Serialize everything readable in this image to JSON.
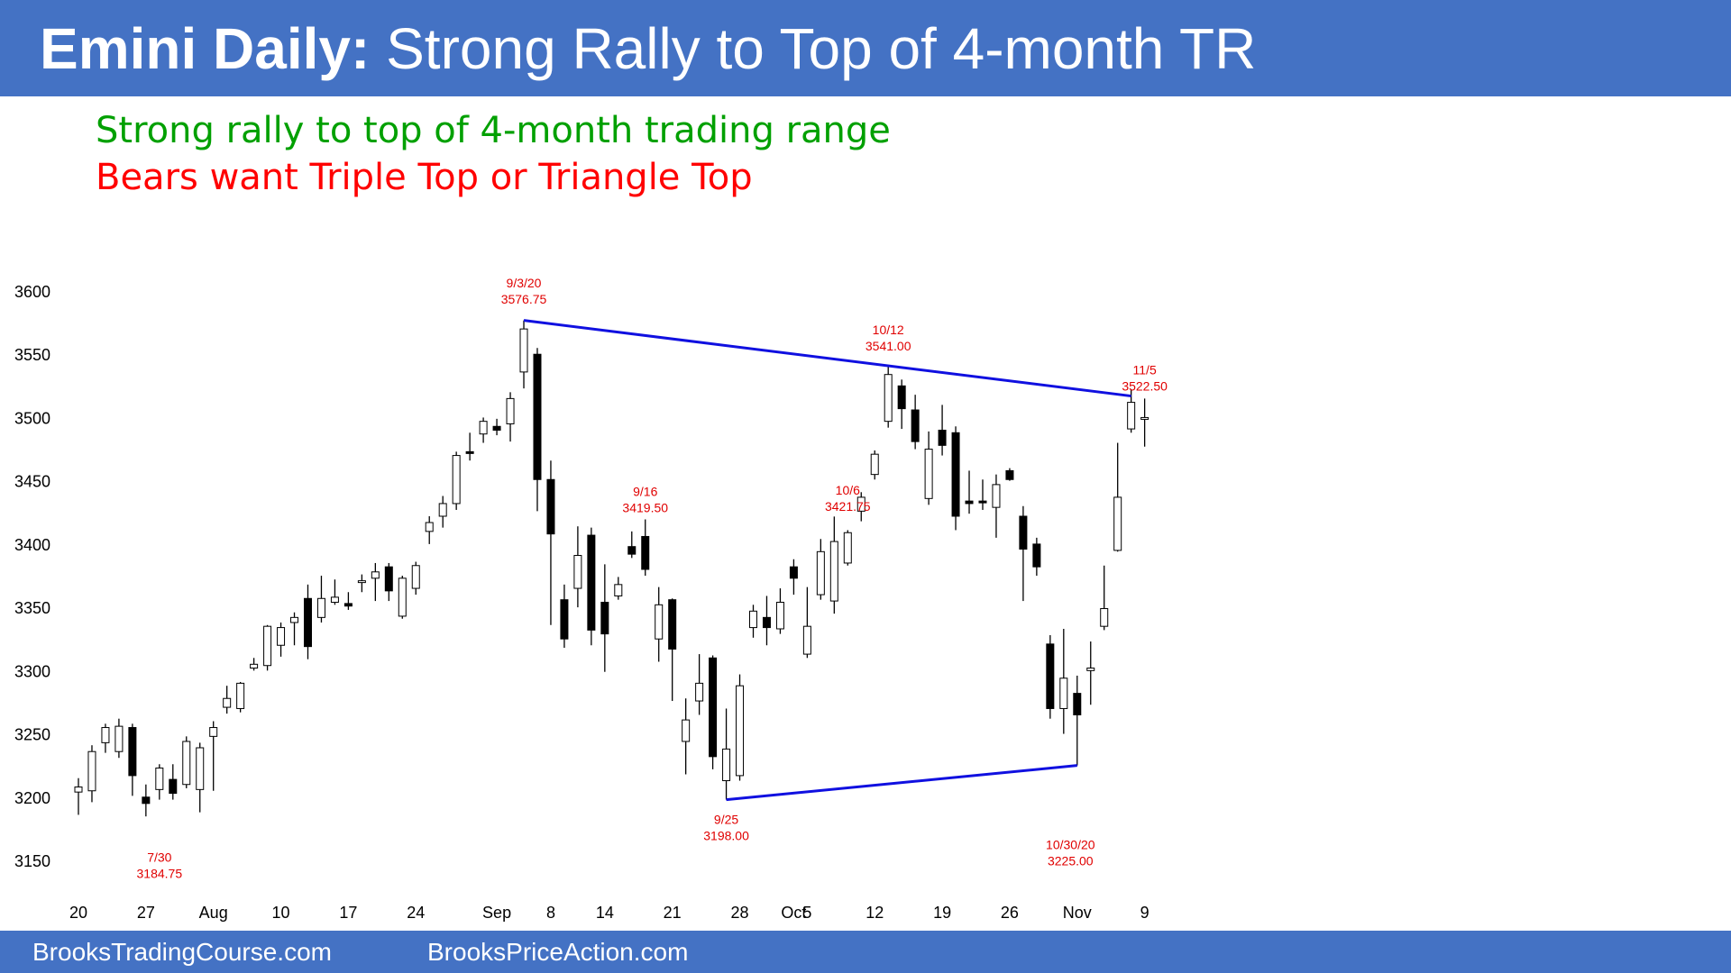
{
  "header": {
    "title_bold": "Emini Daily:",
    "title_rest": " Strong Rally to Top of 4-month TR"
  },
  "subtitles": {
    "line1": "Strong rally to top of 4-month trading range",
    "line2": "Bears want Triple Top or Triangle Top"
  },
  "footer": {
    "left": "BrooksTradingCourse.com",
    "right": "BrooksPriceAction.com"
  },
  "colors": {
    "header_bg": "#4472C4",
    "subtitle1": "#00A000",
    "subtitle2": "#FF0000",
    "annotation": "#E00000",
    "trendline": "#1010E0",
    "bear_body": "#000000",
    "bull_body": "#FFFFFF"
  },
  "chart_data": {
    "type": "candlestick",
    "title": "",
    "xlabel": "",
    "ylabel": "",
    "grid": false,
    "ylim": [
      3130,
      3615
    ],
    "yticks": [
      3150,
      3200,
      3250,
      3300,
      3350,
      3400,
      3450,
      3500,
      3550,
      3600
    ],
    "xticks": [
      {
        "label": "20",
        "bar": 0
      },
      {
        "label": "27",
        "bar": 5
      },
      {
        "label": "Aug",
        "bar": 10
      },
      {
        "label": "10",
        "bar": 15
      },
      {
        "label": "17",
        "bar": 20
      },
      {
        "label": "24",
        "bar": 25
      },
      {
        "label": "Sep",
        "bar": 31
      },
      {
        "label": "8",
        "bar": 35
      },
      {
        "label": "14",
        "bar": 39
      },
      {
        "label": "21",
        "bar": 44
      },
      {
        "label": "28",
        "bar": 49
      },
      {
        "label": "Oct",
        "bar": 53
      },
      {
        "label": "5",
        "bar": 54
      },
      {
        "label": "12",
        "bar": 59
      },
      {
        "label": "19",
        "bar": 64
      },
      {
        "label": "26",
        "bar": 69
      },
      {
        "label": "Nov",
        "bar": 74
      },
      {
        "label": "9",
        "bar": 79
      }
    ],
    "candles": [
      {
        "o": 3204,
        "h": 3215,
        "l": 3186,
        "c": 3208
      },
      {
        "o": 3205,
        "h": 3241,
        "l": 3196,
        "c": 3236
      },
      {
        "o": 3243,
        "h": 3258,
        "l": 3235,
        "c": 3255
      },
      {
        "o": 3236,
        "h": 3262,
        "l": 3231,
        "c": 3256
      },
      {
        "o": 3255,
        "h": 3258,
        "l": 3201,
        "c": 3217
      },
      {
        "o": 3200,
        "h": 3210,
        "l": 3184.75,
        "c": 3195
      },
      {
        "o": 3206,
        "h": 3226,
        "l": 3198,
        "c": 3223
      },
      {
        "o": 3214,
        "h": 3226,
        "l": 3198,
        "c": 3203
      },
      {
        "o": 3210,
        "h": 3248,
        "l": 3207,
        "c": 3244
      },
      {
        "o": 3206,
        "h": 3243,
        "l": 3188,
        "c": 3239
      },
      {
        "o": 3248,
        "h": 3260,
        "l": 3205,
        "c": 3255
      },
      {
        "o": 3271,
        "h": 3288,
        "l": 3266,
        "c": 3278
      },
      {
        "o": 3270,
        "h": 3291,
        "l": 3267,
        "c": 3290
      },
      {
        "o": 3302,
        "h": 3310,
        "l": 3300,
        "c": 3305
      },
      {
        "o": 3304,
        "h": 3336,
        "l": 3300,
        "c": 3335
      },
      {
        "o": 3320,
        "h": 3338,
        "l": 3311,
        "c": 3334
      },
      {
        "o": 3338,
        "h": 3346,
        "l": 3320,
        "c": 3342
      },
      {
        "o": 3357,
        "h": 3368,
        "l": 3309,
        "c": 3319
      },
      {
        "o": 3342,
        "h": 3375,
        "l": 3338,
        "c": 3357
      },
      {
        "o": 3354,
        "h": 3372,
        "l": 3352,
        "c": 3358
      },
      {
        "o": 3353,
        "h": 3362,
        "l": 3348,
        "c": 3351
      },
      {
        "o": 3370,
        "h": 3376,
        "l": 3362,
        "c": 3371
      },
      {
        "o": 3373,
        "h": 3385,
        "l": 3355,
        "c": 3378
      },
      {
        "o": 3382,
        "h": 3385,
        "l": 3355,
        "c": 3363
      },
      {
        "o": 3343,
        "h": 3375,
        "l": 3341,
        "c": 3373
      },
      {
        "o": 3365,
        "h": 3386,
        "l": 3360,
        "c": 3383
      },
      {
        "o": 3410,
        "h": 3422,
        "l": 3400,
        "c": 3417
      },
      {
        "o": 3422,
        "h": 3438,
        "l": 3413,
        "c": 3432
      },
      {
        "o": 3432,
        "h": 3473,
        "l": 3427,
        "c": 3470
      },
      {
        "o": 3473,
        "h": 3488,
        "l": 3466,
        "c": 3472
      },
      {
        "o": 3487,
        "h": 3500,
        "l": 3480,
        "c": 3497
      },
      {
        "o": 3493,
        "h": 3499,
        "l": 3486,
        "c": 3490
      },
      {
        "o": 3495,
        "h": 3520,
        "l": 3481,
        "c": 3515
      },
      {
        "o": 3536,
        "h": 3576.75,
        "l": 3523,
        "c": 3570
      },
      {
        "o": 3550,
        "h": 3555,
        "l": 3426,
        "c": 3451
      },
      {
        "o": 3451,
        "h": 3466,
        "l": 3336,
        "c": 3408
      },
      {
        "o": 3356,
        "h": 3368,
        "l": 3318,
        "c": 3325
      },
      {
        "o": 3365,
        "h": 3414,
        "l": 3350,
        "c": 3391
      },
      {
        "o": 3407,
        "h": 3413,
        "l": 3320,
        "c": 3332
      },
      {
        "o": 3354,
        "h": 3384,
        "l": 3299,
        "c": 3329
      },
      {
        "o": 3359,
        "h": 3374,
        "l": 3356,
        "c": 3368
      },
      {
        "o": 3398,
        "h": 3410,
        "l": 3389,
        "c": 3392
      },
      {
        "o": 3406,
        "h": 3419.5,
        "l": 3375,
        "c": 3380
      },
      {
        "o": 3325,
        "h": 3366,
        "l": 3307,
        "c": 3352
      },
      {
        "o": 3356,
        "h": 3357,
        "l": 3276,
        "c": 3317
      },
      {
        "o": 3244,
        "h": 3278,
        "l": 3218,
        "c": 3261
      },
      {
        "o": 3276,
        "h": 3313,
        "l": 3265,
        "c": 3290
      },
      {
        "o": 3310,
        "h": 3312,
        "l": 3222,
        "c": 3232
      },
      {
        "o": 3213,
        "h": 3270,
        "l": 3198,
        "c": 3238
      },
      {
        "o": 3217,
        "h": 3297,
        "l": 3213,
        "c": 3288
      },
      {
        "o": 3334,
        "h": 3352,
        "l": 3326,
        "c": 3347
      },
      {
        "o": 3342,
        "h": 3359,
        "l": 3320,
        "c": 3334
      },
      {
        "o": 3333,
        "h": 3365,
        "l": 3329,
        "c": 3354
      },
      {
        "o": 3382,
        "h": 3388,
        "l": 3360,
        "c": 3373
      },
      {
        "o": 3313,
        "h": 3366,
        "l": 3310,
        "c": 3335
      },
      {
        "o": 3360,
        "h": 3404,
        "l": 3356,
        "c": 3394
      },
      {
        "o": 3355,
        "h": 3421.75,
        "l": 3345,
        "c": 3402
      },
      {
        "o": 3385,
        "h": 3411,
        "l": 3383,
        "c": 3409
      },
      {
        "o": 3426,
        "h": 3441,
        "l": 3418,
        "c": 3437
      },
      {
        "o": 3455,
        "h": 3474,
        "l": 3451,
        "c": 3471
      },
      {
        "o": 3497,
        "h": 3541,
        "l": 3492,
        "c": 3534
      },
      {
        "o": 3525,
        "h": 3530,
        "l": 3491,
        "c": 3507
      },
      {
        "o": 3506,
        "h": 3518,
        "l": 3475,
        "c": 3481
      },
      {
        "o": 3436,
        "h": 3489,
        "l": 3431,
        "c": 3475
      },
      {
        "o": 3490,
        "h": 3510,
        "l": 3470,
        "c": 3478
      },
      {
        "o": 3488,
        "h": 3493,
        "l": 3411,
        "c": 3422
      },
      {
        "o": 3434,
        "h": 3458,
        "l": 3424,
        "c": 3432
      },
      {
        "o": 3434,
        "h": 3451,
        "l": 3427,
        "c": 3433
      },
      {
        "o": 3429,
        "h": 3455,
        "l": 3405,
        "c": 3447
      },
      {
        "o": 3458,
        "h": 3460,
        "l": 3450,
        "c": 3451
      },
      {
        "o": 3422,
        "h": 3430,
        "l": 3355,
        "c": 3396
      },
      {
        "o": 3400,
        "h": 3405,
        "l": 3375,
        "c": 3382
      },
      {
        "o": 3321,
        "h": 3328,
        "l": 3262,
        "c": 3270
      },
      {
        "o": 3270,
        "h": 3333,
        "l": 3250,
        "c": 3294
      },
      {
        "o": 3282,
        "h": 3296,
        "l": 3225,
        "c": 3265
      },
      {
        "o": 3300,
        "h": 3323,
        "l": 3273,
        "c": 3302
      },
      {
        "o": 3335,
        "h": 3383,
        "l": 3332,
        "c": 3349
      },
      {
        "o": 3395,
        "h": 3480,
        "l": 3394,
        "c": 3437
      },
      {
        "o": 3491,
        "h": 3522.5,
        "l": 3488,
        "c": 3512
      },
      {
        "o": 3500,
        "h": 3515,
        "l": 3477,
        "c": 3500
      }
    ],
    "trendlines": [
      {
        "from": {
          "bar": 33,
          "price": 3576.75
        },
        "to": {
          "bar": 78,
          "price": 3517
        }
      },
      {
        "from": {
          "bar": 48,
          "price": 3198
        },
        "to": {
          "bar": 74,
          "price": 3225
        }
      }
    ],
    "annotations": [
      {
        "bar": 6,
        "price": 3149,
        "lines": [
          "7/30",
          "3184.75"
        ]
      },
      {
        "bar": 33,
        "price": 3603,
        "lines": [
          "9/3/20",
          "3576.75"
        ]
      },
      {
        "bar": 42,
        "price": 3438,
        "lines": [
          "9/16",
          "3419.50"
        ]
      },
      {
        "bar": 48,
        "price": 3179,
        "lines": [
          "9/25",
          "3198.00"
        ]
      },
      {
        "bar": 57,
        "price": 3439,
        "lines": [
          "10/6",
          "3421.75"
        ]
      },
      {
        "bar": 60,
        "price": 3566,
        "lines": [
          "10/12",
          "3541.00"
        ]
      },
      {
        "bar": 73.5,
        "price": 3159,
        "lines": [
          "10/30/20",
          "3225.00"
        ]
      },
      {
        "bar": 79,
        "price": 3534,
        "lines": [
          "11/5",
          "3522.50"
        ]
      }
    ]
  }
}
